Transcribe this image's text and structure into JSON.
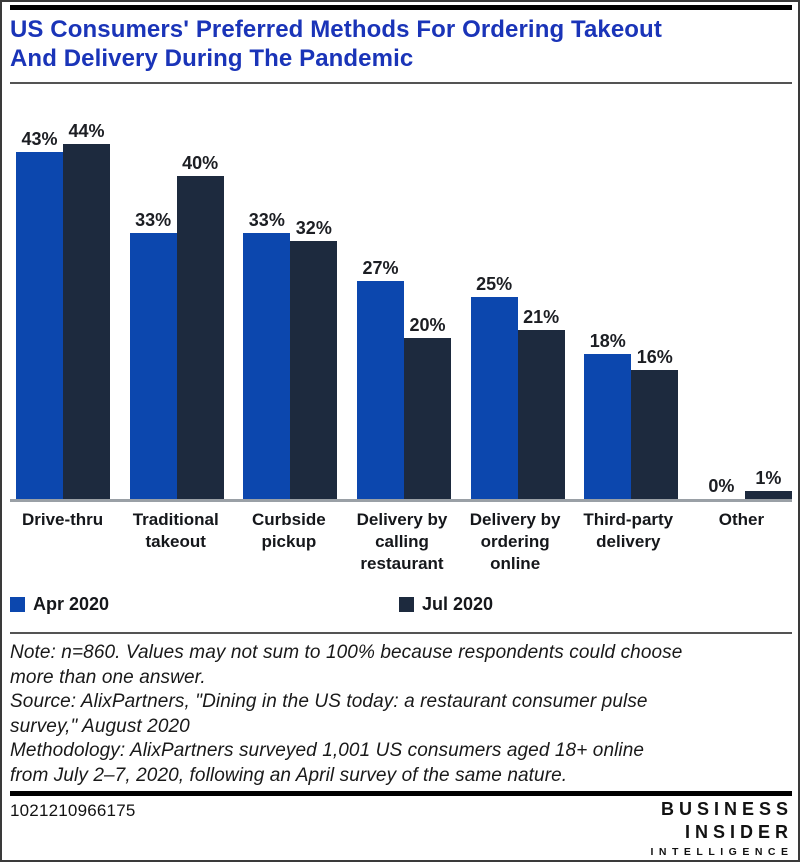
{
  "header": {
    "title": "US Consumers' Preferred Methods For Ordering Takeout And Delivery During The Pandemic",
    "title_lines": [
      "US Consumers' Preferred Methods For Ordering Takeout",
      "And Delivery During The Pandemic"
    ],
    "title_color": "#1A34B8"
  },
  "chart_data": {
    "type": "bar",
    "title": "US Consumers' Preferred Methods For Ordering Takeout And Delivery During The Pandemic",
    "categories": [
      "Drive-thru",
      "Traditional takeout",
      "Curbside pickup",
      "Delivery by calling restaurant",
      "Delivery by ordering online",
      "Third-party delivery",
      "Other"
    ],
    "category_lines": [
      [
        "Drive-thru"
      ],
      [
        "Traditional",
        "takeout"
      ],
      [
        "Curbside",
        "pickup"
      ],
      [
        "Delivery by",
        "calling",
        "restaurant"
      ],
      [
        "Delivery by",
        "ordering",
        "online"
      ],
      [
        "Third-party",
        "delivery"
      ],
      [
        "Other"
      ]
    ],
    "series": [
      {
        "name": "Apr 2020",
        "color": "#0C47AE",
        "values": [
          43,
          33,
          33,
          27,
          25,
          18,
          0
        ]
      },
      {
        "name": "Jul 2020",
        "color": "#1D2A3E",
        "values": [
          44,
          40,
          32,
          20,
          21,
          16,
          1
        ]
      }
    ],
    "value_suffix": "%",
    "ylim": [
      0,
      49
    ],
    "grid": false,
    "data_labels": true,
    "legend_position": "bottom",
    "axis_color": "#9aa0a6"
  },
  "notes": {
    "lines": [
      "Note: n=860. Values may not sum to 100% because respondents could choose",
      "more than one answer.",
      "Source: AlixPartners, \"Dining in the US today: a restaurant consumer pulse",
      "survey,\" August 2020",
      "Methodology: AlixPartners surveyed 1,001 US consumers aged 18+ online",
      "from July 2–7, 2020, following an April survey of the same nature."
    ]
  },
  "footer": {
    "id_number": "1021210966175",
    "logo_lines": [
      "BUSINESS",
      "INSIDER",
      "INTELLIGENCE"
    ]
  }
}
